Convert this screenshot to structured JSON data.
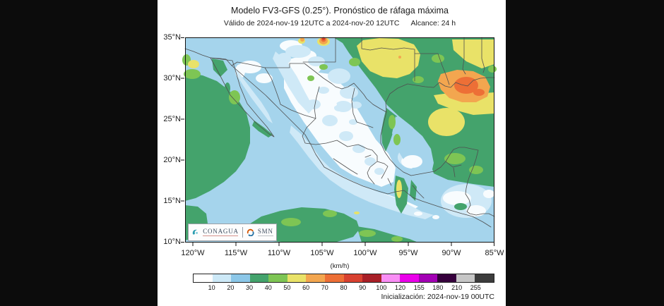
{
  "header": {
    "title": "Modelo FV3-GFS (0.25°). Pronóstico de ráfaga máxima",
    "valid_range": "Válido de 2024-nov-19 12UTC a 2024-nov-20 12UTC",
    "reach": "Alcance: 24 h"
  },
  "map": {
    "y_tick_labels": [
      "35°N",
      "30°N",
      "25°N",
      "20°N",
      "15°N",
      "10°N"
    ],
    "x_tick_labels": [
      "120°W",
      "115°W",
      "110°W",
      "105°W",
      "100°W",
      "95°W",
      "90°W",
      "85°W"
    ],
    "logos": {
      "conagua_label": "CONAGUA",
      "smn_label": "SMN"
    }
  },
  "colorbar": {
    "units_label": "(km/h)",
    "tick_labels": [
      "10",
      "20",
      "30",
      "40",
      "50",
      "60",
      "70",
      "80",
      "90",
      "100",
      "120",
      "155",
      "180",
      "210",
      "255"
    ],
    "segment_colors": [
      "#ffffff",
      "#cde9f7",
      "#8cc7e8",
      "#44a36c",
      "#7ec554",
      "#e9e268",
      "#f3a64f",
      "#ed6f36",
      "#d84130",
      "#a81f27",
      "#f98ef5",
      "#ea00ea",
      "#a200b4",
      "#36003c",
      "#c6c6c6",
      "#3c3c3c"
    ]
  },
  "footer": {
    "initialization": "Inicialización: 2024-nov-19 00UTC"
  },
  "palette": {
    "ocean_mid_blue": "#a5d4ec",
    "coastal_light_blue": "#cfe9f7",
    "calm_white": "#f8fcfe",
    "sea_green_30_40": "#44a36c",
    "green_40_50": "#7ec554",
    "yellow_50_60": "#e9e268",
    "orange_60_70": "#f3a64f",
    "orange_70_80": "#ed6f36",
    "red_80_90": "#d84130",
    "boundary_line": "#4f4f4f",
    "letterbox": "#0c0c0c"
  }
}
